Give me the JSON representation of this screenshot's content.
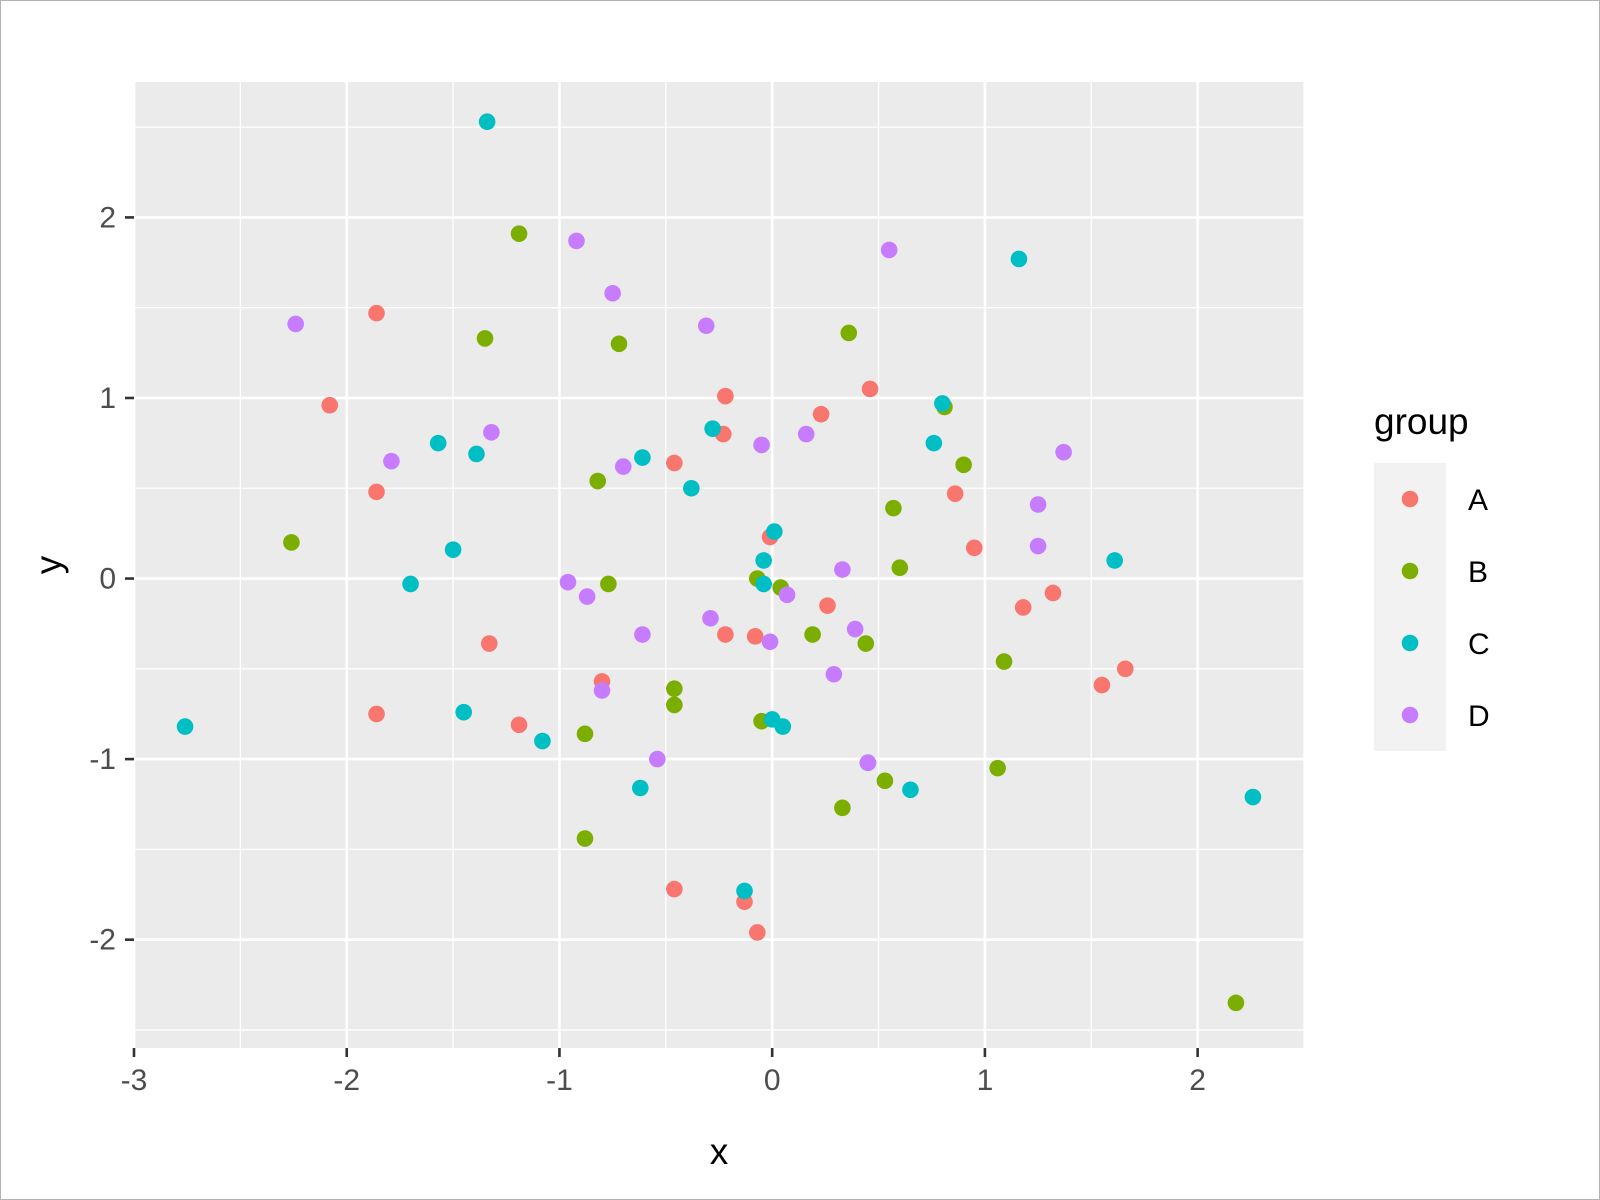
{
  "chart_data": {
    "type": "scatter",
    "title": "",
    "xlabel": "x",
    "ylabel": "y",
    "xlim": [
      -3.0,
      2.5
    ],
    "ylim": [
      -2.6,
      2.75
    ],
    "x_ticks": [
      -3,
      -2,
      -1,
      0,
      1,
      2
    ],
    "x_tick_labels": [
      "-3",
      "-2",
      "-1",
      "0",
      "1",
      "2"
    ],
    "y_ticks": [
      -2,
      -1,
      0,
      1,
      2
    ],
    "y_tick_labels": [
      "-2",
      "-1",
      "0",
      "1",
      "2"
    ],
    "grid": true,
    "panel_background": "#ebebeb",
    "legend": {
      "title": "group",
      "position": "right"
    },
    "series": [
      {
        "name": "A",
        "color": "#f8766d",
        "points": [
          [
            -1.86,
            1.47
          ],
          [
            -2.08,
            0.96
          ],
          [
            -1.86,
            0.48
          ],
          [
            -1.33,
            -0.36
          ],
          [
            -1.86,
            -0.75
          ],
          [
            -1.19,
            -0.81
          ],
          [
            -0.8,
            -0.57
          ],
          [
            -0.46,
            0.64
          ],
          [
            -0.22,
            1.01
          ],
          [
            -0.23,
            0.8
          ],
          [
            -0.22,
            -0.31
          ],
          [
            -0.08,
            -0.32
          ],
          [
            -0.01,
            0.23
          ],
          [
            0.23,
            0.91
          ],
          [
            0.46,
            1.05
          ],
          [
            0.26,
            -0.15
          ],
          [
            -0.46,
            -1.72
          ],
          [
            -0.13,
            -1.79
          ],
          [
            -0.07,
            -1.96
          ],
          [
            0.86,
            0.47
          ],
          [
            0.95,
            0.17
          ],
          [
            1.18,
            -0.16
          ],
          [
            1.32,
            -0.08
          ],
          [
            1.55,
            -0.59
          ],
          [
            1.66,
            -0.5
          ]
        ]
      },
      {
        "name": "B",
        "color": "#7cae00",
        "points": [
          [
            -1.19,
            1.91
          ],
          [
            -1.35,
            1.33
          ],
          [
            -0.72,
            1.3
          ],
          [
            -2.26,
            0.2
          ],
          [
            -0.82,
            0.54
          ],
          [
            -0.77,
            -0.03
          ],
          [
            -0.46,
            -0.61
          ],
          [
            -0.46,
            -0.7
          ],
          [
            -0.88,
            -0.86
          ],
          [
            -0.88,
            -1.44
          ],
          [
            -0.07,
            0.0
          ],
          [
            0.04,
            -0.05
          ],
          [
            -0.05,
            -0.79
          ],
          [
            0.19,
            -0.31
          ],
          [
            0.36,
            1.36
          ],
          [
            0.44,
            -0.36
          ],
          [
            0.57,
            0.39
          ],
          [
            0.6,
            0.06
          ],
          [
            0.53,
            -1.12
          ],
          [
            0.33,
            -1.27
          ],
          [
            0.81,
            0.95
          ],
          [
            0.9,
            0.63
          ],
          [
            1.09,
            -0.46
          ],
          [
            1.06,
            -1.05
          ],
          [
            2.18,
            -2.35
          ]
        ]
      },
      {
        "name": "C",
        "color": "#00bfc4",
        "points": [
          [
            -1.34,
            2.53
          ],
          [
            -1.57,
            0.75
          ],
          [
            -1.39,
            0.69
          ],
          [
            -1.5,
            0.16
          ],
          [
            -1.7,
            -0.03
          ],
          [
            -1.45,
            -0.74
          ],
          [
            -1.08,
            -0.9
          ],
          [
            -2.76,
            -0.82
          ],
          [
            -0.61,
            0.67
          ],
          [
            -0.38,
            0.5
          ],
          [
            -0.28,
            0.83
          ],
          [
            -0.62,
            -1.16
          ],
          [
            -0.13,
            -1.73
          ],
          [
            0.01,
            0.26
          ],
          [
            -0.04,
            0.1
          ],
          [
            -0.04,
            -0.03
          ],
          [
            0.0,
            -0.78
          ],
          [
            0.05,
            -0.82
          ],
          [
            0.45,
            -1.02
          ],
          [
            0.65,
            -1.17
          ],
          [
            0.8,
            0.97
          ],
          [
            0.76,
            0.75
          ],
          [
            1.16,
            1.77
          ],
          [
            1.61,
            0.1
          ],
          [
            2.26,
            -1.21
          ]
        ]
      },
      {
        "name": "D",
        "color": "#c77cff",
        "points": [
          [
            -2.24,
            1.41
          ],
          [
            -1.79,
            0.65
          ],
          [
            -1.32,
            0.81
          ],
          [
            -0.92,
            1.87
          ],
          [
            -0.75,
            1.58
          ],
          [
            -0.7,
            0.62
          ],
          [
            -0.96,
            -0.02
          ],
          [
            -0.87,
            -0.1
          ],
          [
            -0.61,
            -0.31
          ],
          [
            -0.8,
            -0.62
          ],
          [
            -0.54,
            -1.0
          ],
          [
            -0.31,
            1.4
          ],
          [
            -0.29,
            -0.22
          ],
          [
            -0.05,
            0.74
          ],
          [
            -0.01,
            -0.35
          ],
          [
            0.07,
            -0.09
          ],
          [
            0.16,
            0.8
          ],
          [
            0.33,
            0.05
          ],
          [
            0.39,
            -0.28
          ],
          [
            0.29,
            -0.53
          ],
          [
            0.45,
            -1.02
          ],
          [
            0.55,
            1.82
          ],
          [
            1.25,
            0.41
          ],
          [
            1.25,
            0.18
          ],
          [
            1.37,
            0.7
          ]
        ]
      }
    ]
  }
}
